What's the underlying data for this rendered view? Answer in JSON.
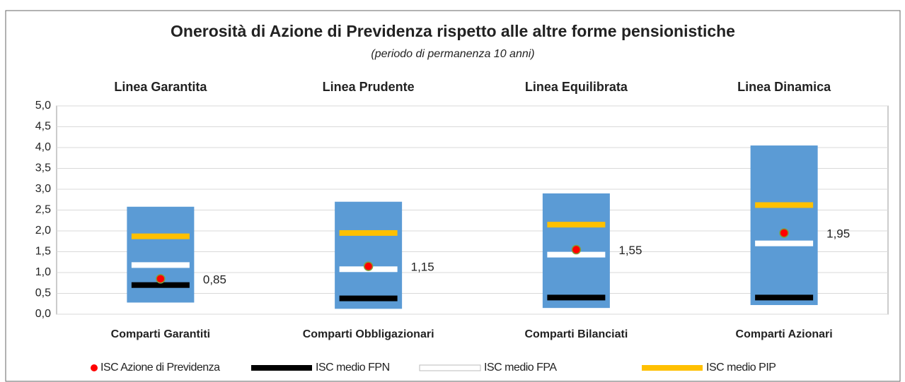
{
  "chart_data": {
    "type": "range-marker",
    "title": "Onerosità di Azione di Previdenza rispetto alle altre forme pensionistiche",
    "subtitle": "(periodo di permanenza 10 anni)",
    "group_labels": [
      "Linea Garantita",
      "Linea Prudente",
      "Linea Equilibrata",
      "Linea Dinamica"
    ],
    "categories": [
      "Comparti Garantiti",
      "Comparti Obbligazionari",
      "Comparti Bilanciati",
      "Comparti Azionari"
    ],
    "range": {
      "color": "#5b9bd5",
      "low": [
        0.28,
        0.13,
        0.15,
        0.22
      ],
      "high": [
        2.58,
        2.7,
        2.9,
        4.05
      ]
    },
    "series": [
      {
        "name": "ISC Azione di Previdenza",
        "color": "#ff0000",
        "marker": "dot",
        "values": [
          0.85,
          1.15,
          1.55,
          1.95
        ],
        "value_labels": [
          "0,85",
          "1,15",
          "1,55",
          "1,95"
        ]
      },
      {
        "name": "ISC medio FPN",
        "color": "#000000",
        "marker": "bar",
        "values": [
          0.7,
          0.38,
          0.4,
          0.4
        ]
      },
      {
        "name": "ISC medio FPA",
        "color": "#ffffff",
        "marker": "bar",
        "values": [
          1.18,
          1.08,
          1.43,
          1.7
        ]
      },
      {
        "name": "ISC medio PIP",
        "color": "#ffc000",
        "marker": "bar",
        "values": [
          1.87,
          1.95,
          2.15,
          2.62
        ]
      }
    ],
    "ylim": [
      0,
      5
    ],
    "yticks": [
      {
        "value": 0,
        "label": "0,0"
      },
      {
        "value": 0.5,
        "label": "0,5"
      },
      {
        "value": 1,
        "label": "1,0"
      },
      {
        "value": 1.5,
        "label": "1,5"
      },
      {
        "value": 2,
        "label": "2,0"
      },
      {
        "value": 2.5,
        "label": "2,5"
      },
      {
        "value": 3,
        "label": "3,0"
      },
      {
        "value": 3.5,
        "label": "3,5"
      },
      {
        "value": 4,
        "label": "4,0"
      },
      {
        "value": 4.5,
        "label": "4,5"
      },
      {
        "value": 5,
        "label": "5,0"
      }
    ],
    "grid": true
  }
}
